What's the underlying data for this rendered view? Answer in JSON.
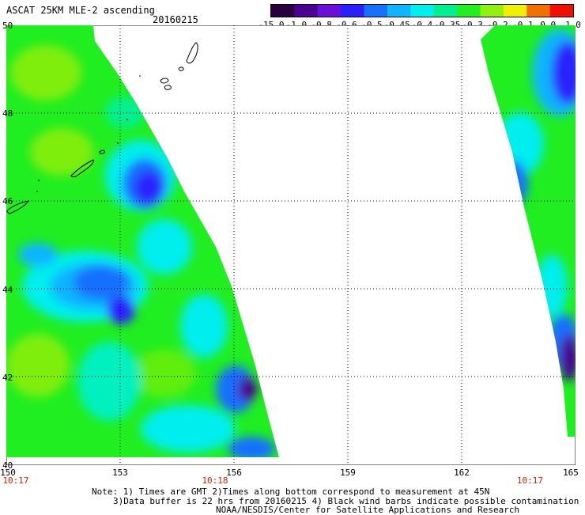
{
  "header": {
    "title": "ASCAT 25KM MLE-2 ascending",
    "date": "20160215"
  },
  "colorbar": {
    "labels": [
      "-15.0",
      "-1.0",
      "-0.8",
      "-0.6",
      "-0.5",
      "-0.45",
      "-0.4",
      "-0.35",
      "-0.3",
      "-0.2",
      "-0.1",
      "0.0",
      "1.0"
    ],
    "colors": [
      "#2a0040",
      "#4a0090",
      "#6a10d8",
      "#2a20ff",
      "#1870ff",
      "#10b4ff",
      "#00f0f0",
      "#00f090",
      "#20f020",
      "#90f010",
      "#f0f000",
      "#f07000",
      "#f01000"
    ]
  },
  "map": {
    "lon_range": [
      150,
      165
    ],
    "lat_range": [
      40,
      50
    ],
    "x_ticks": [
      "150",
      "153",
      "156",
      "159",
      "162",
      "165"
    ],
    "y_ticks": [
      "50",
      "48",
      "46",
      "44",
      "42",
      "40"
    ],
    "time_labels": [
      {
        "lon": 150,
        "text": "10:17"
      },
      {
        "lon": 155.5,
        "text": "10:18"
      },
      {
        "lon": 163.8,
        "text": "10:17"
      }
    ]
  },
  "footer": {
    "line1": "Note: 1) Times are GMT 2)Times along bottom correspond to measurement at 45N",
    "line2": "3)Data buffer is 22 hrs from 20160215 4) Black wind barbs indicate possible contamination",
    "line3": "NOAA/NESDIS/Center for Satellite Applications and Research"
  }
}
